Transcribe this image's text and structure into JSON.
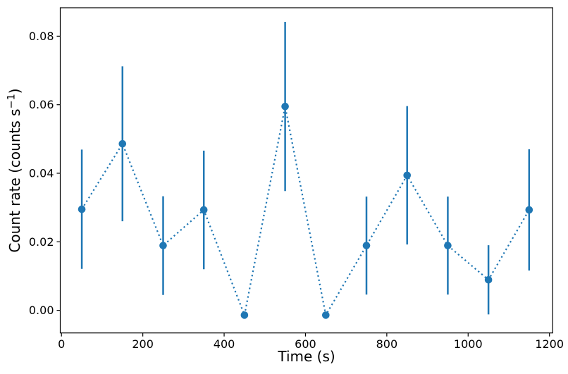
{
  "chart_data": {
    "type": "line",
    "subtype": "errorbar",
    "title": "",
    "xlabel": "Time (s)",
    "ylabel": "Count rate (counts s⁻¹)",
    "ylabel_parts": {
      "prefix": "Count rate (counts s",
      "sup": "−1",
      "suffix": ")"
    },
    "x": [
      50,
      150,
      250,
      350,
      450,
      550,
      650,
      750,
      850,
      950,
      1050,
      1150
    ],
    "series": [
      {
        "name": "count-rate",
        "values": [
          0.0295,
          0.0486,
          0.0189,
          0.0293,
          -0.0014,
          0.0595,
          -0.0014,
          0.0189,
          0.0394,
          0.0189,
          0.0089,
          0.0293
        ],
        "yerr": [
          0.0174,
          0.0226,
          0.0144,
          0.0173,
          0,
          0.0247,
          0,
          0.0143,
          0.0202,
          0.0143,
          0.0101,
          0.0177
        ]
      }
    ],
    "x_ticks": {
      "values": [
        0,
        200,
        400,
        600,
        800,
        1000,
        1200
      ],
      "labels": [
        "0",
        "200",
        "400",
        "600",
        "800",
        "1000",
        "1200"
      ]
    },
    "y_ticks": {
      "values": [
        0.0,
        0.02,
        0.04,
        0.06,
        0.08
      ],
      "labels": [
        "0.00",
        "0.02",
        "0.04",
        "0.06",
        "0.08"
      ]
    },
    "xlim": [
      -3,
      1208
    ],
    "ylim": [
      -0.0066,
      0.0883
    ],
    "grid": false,
    "legend": null,
    "marker": "circle",
    "linestyle": "dotted",
    "errorbar_caps": false,
    "colors": {
      "series": "#1f77b4",
      "axes": "#000000",
      "background": "#ffffff"
    }
  }
}
